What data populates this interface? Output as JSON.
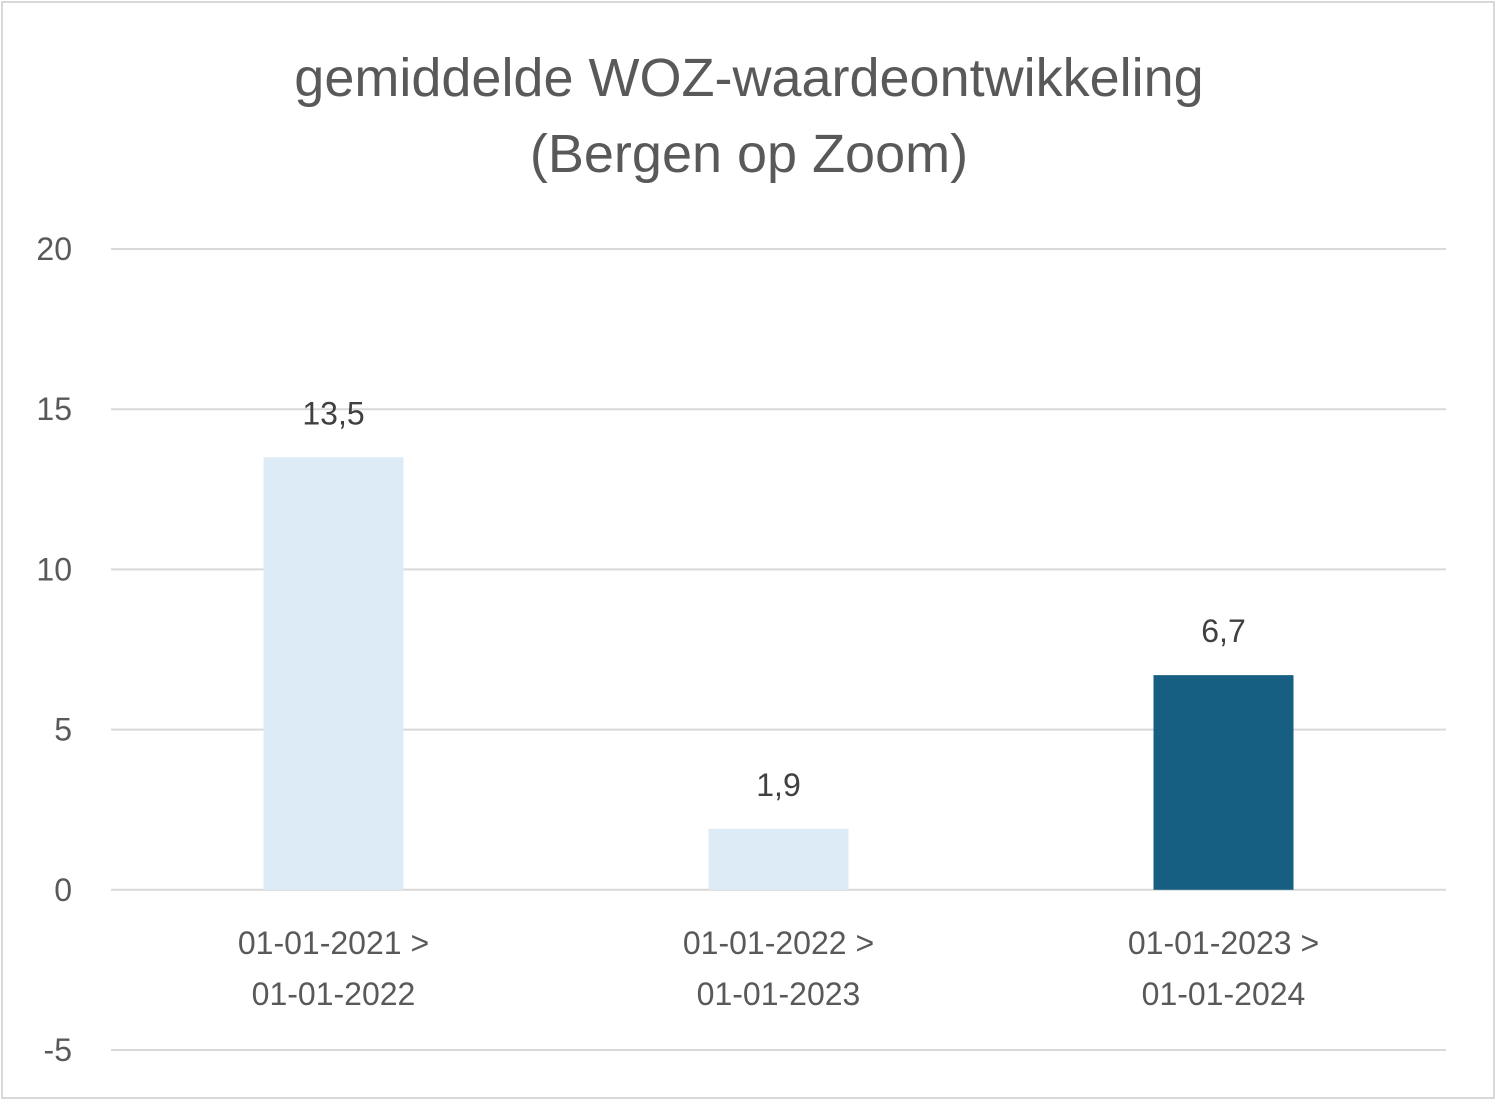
{
  "chart_data": {
    "type": "bar",
    "title_line1": "gemiddelde WOZ-waardeontwikkeling",
    "title_line2": "(Bergen op Zoom)",
    "categories": [
      [
        "01-01-2021 >",
        "01-01-2022"
      ],
      [
        "01-01-2022 >",
        "01-01-2023"
      ],
      [
        "01-01-2023 >",
        "01-01-2024"
      ]
    ],
    "values": [
      13.5,
      1.9,
      6.7
    ],
    "data_labels": [
      "13,5",
      "1,9",
      "6,7"
    ],
    "bar_colors": [
      "#ddebf7",
      "#ddebf7",
      "#165f82"
    ],
    "xlabel": "",
    "ylabel": "",
    "ylim": [
      -5,
      20
    ],
    "yticks": [
      -5,
      0,
      5,
      10,
      15,
      20
    ],
    "grid": true,
    "legend": "none"
  }
}
